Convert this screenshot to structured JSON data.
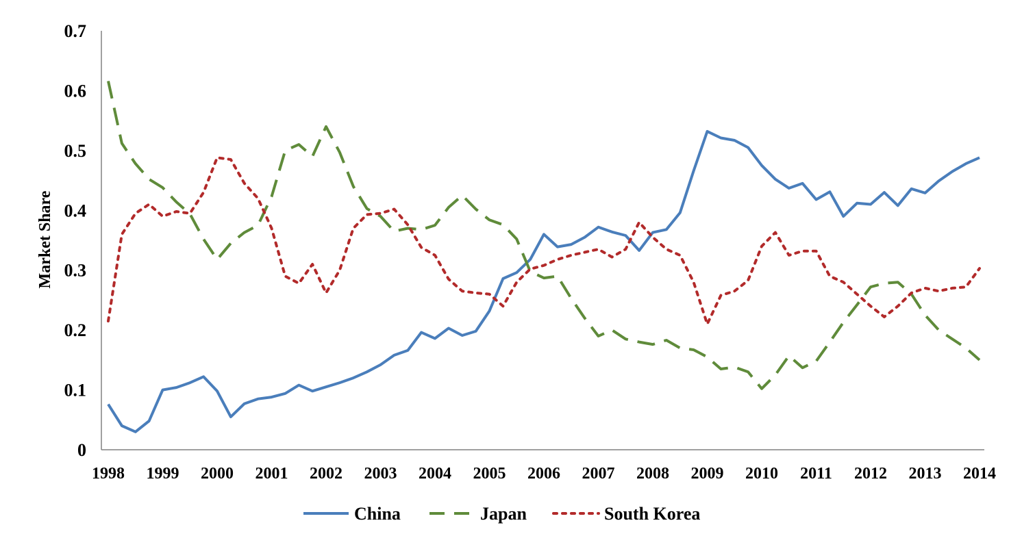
{
  "chart_data": {
    "type": "line",
    "title": "",
    "xlabel": "",
    "ylabel": "Market Share",
    "ylim": [
      0,
      0.7
    ],
    "yticks": [
      "0",
      "0.1",
      "0.2",
      "0.3",
      "0.4",
      "0.5",
      "0.6",
      "0.7"
    ],
    "xlim": [
      1998,
      2014
    ],
    "xticks": [
      "1998",
      "1999",
      "2000",
      "2001",
      "2002",
      "2003",
      "2004",
      "2005",
      "2006",
      "2007",
      "2008",
      "2009",
      "2010",
      "2011",
      "2012",
      "2013",
      "2014"
    ],
    "grid": false,
    "legend_position": "bottom",
    "x": [
      1998.0,
      1998.25,
      1998.5,
      1998.75,
      1999.0,
      1999.25,
      1999.5,
      1999.75,
      2000.0,
      2000.25,
      2000.5,
      2000.75,
      2001.0,
      2001.25,
      2001.5,
      2001.75,
      2002.0,
      2002.25,
      2002.5,
      2002.75,
      2003.0,
      2003.25,
      2003.5,
      2003.75,
      2004.0,
      2004.25,
      2004.5,
      2004.75,
      2005.0,
      2005.25,
      2005.5,
      2005.75,
      2006.0,
      2006.25,
      2006.5,
      2006.75,
      2007.0,
      2007.25,
      2007.5,
      2007.75,
      2008.0,
      2008.25,
      2008.5,
      2008.75,
      2009.0,
      2009.25,
      2009.5,
      2009.75,
      2010.0,
      2010.25,
      2010.5,
      2010.75,
      2011.0,
      2011.25,
      2011.5,
      2011.75,
      2012.0,
      2012.25,
      2012.5,
      2012.75,
      2013.0,
      2013.25,
      2013.5,
      2013.75,
      2014.0
    ],
    "series": [
      {
        "name": "China",
        "color": "#4a7ebb",
        "style": "solid",
        "values": [
          0.076,
          0.04,
          0.03,
          0.048,
          0.1,
          0.104,
          0.112,
          0.122,
          0.098,
          0.055,
          0.077,
          0.085,
          0.088,
          0.094,
          0.108,
          0.098,
          0.105,
          0.112,
          0.12,
          0.13,
          0.142,
          0.158,
          0.166,
          0.196,
          0.186,
          0.203,
          0.191,
          0.198,
          0.232,
          0.286,
          0.296,
          0.318,
          0.36,
          0.339,
          0.343,
          0.355,
          0.372,
          0.364,
          0.358,
          0.333,
          0.363,
          0.368,
          0.396,
          0.466,
          0.532,
          0.521,
          0.517,
          0.505,
          0.475,
          0.452,
          0.437,
          0.445,
          0.418,
          0.431,
          0.39,
          0.412,
          0.41,
          0.43,
          0.408,
          0.436,
          0.429,
          0.449,
          0.465,
          0.478,
          0.488
        ]
      },
      {
        "name": "Japan",
        "color": "#5f8b3a",
        "style": "dashed",
        "values": [
          0.616,
          0.512,
          0.478,
          0.452,
          0.438,
          0.414,
          0.394,
          0.352,
          0.318,
          0.345,
          0.363,
          0.375,
          0.423,
          0.5,
          0.51,
          0.49,
          0.54,
          0.497,
          0.44,
          0.403,
          0.39,
          0.365,
          0.37,
          0.368,
          0.375,
          0.405,
          0.425,
          0.402,
          0.384,
          0.376,
          0.352,
          0.298,
          0.287,
          0.29,
          0.253,
          0.22,
          0.19,
          0.2,
          0.185,
          0.18,
          0.176,
          0.183,
          0.17,
          0.167,
          0.155,
          0.135,
          0.138,
          0.13,
          0.102,
          0.125,
          0.157,
          0.137,
          0.148,
          0.18,
          0.213,
          0.242,
          0.272,
          0.278,
          0.28,
          0.26,
          0.225,
          0.2,
          0.185,
          0.17,
          0.15
        ]
      },
      {
        "name": "South Korea",
        "color": "#b22a2a",
        "style": "dotted",
        "values": [
          0.215,
          0.36,
          0.395,
          0.41,
          0.39,
          0.398,
          0.395,
          0.43,
          0.488,
          0.485,
          0.445,
          0.42,
          0.37,
          0.29,
          0.278,
          0.31,
          0.262,
          0.3,
          0.37,
          0.393,
          0.395,
          0.402,
          0.376,
          0.338,
          0.325,
          0.285,
          0.265,
          0.262,
          0.26,
          0.24,
          0.28,
          0.302,
          0.308,
          0.318,
          0.325,
          0.33,
          0.335,
          0.322,
          0.335,
          0.38,
          0.355,
          0.335,
          0.325,
          0.28,
          0.21,
          0.258,
          0.265,
          0.283,
          0.34,
          0.363,
          0.325,
          0.332,
          0.332,
          0.29,
          0.28,
          0.26,
          0.24,
          0.222,
          0.24,
          0.262,
          0.27,
          0.265,
          0.27,
          0.272,
          0.303
        ]
      }
    ]
  }
}
